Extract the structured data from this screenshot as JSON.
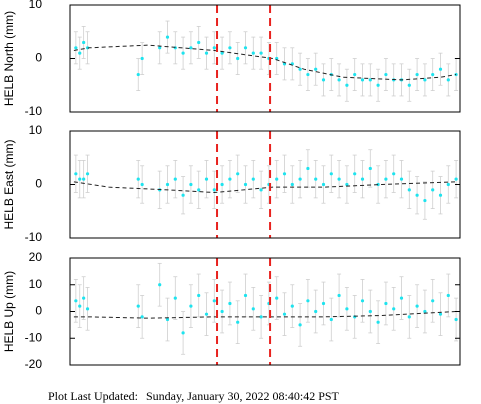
{
  "chart_data": [
    {
      "type": "scatter",
      "ylabel": "HELB North (mm)",
      "ylim": [
        -10,
        10
      ],
      "yticks": [
        -10,
        0,
        10
      ],
      "xlim": [
        0,
        100
      ],
      "vlines": [
        37.7,
        51.3
      ],
      "vline_color": "#e8221e",
      "color": "#1ee3ee",
      "error_color": "#cfcfcf",
      "x": [
        1.5,
        2.5,
        3.5,
        4.5,
        17.5,
        18.5,
        23,
        25,
        27,
        29,
        31,
        33,
        35,
        37,
        39,
        41,
        43,
        45,
        47,
        49,
        51,
        53,
        55,
        57,
        59,
        61,
        63,
        65,
        67,
        69,
        71,
        73,
        75,
        77,
        79,
        81,
        83,
        85,
        87,
        89,
        91,
        93,
        95,
        97,
        99
      ],
      "values": [
        2,
        1,
        3,
        2,
        -3,
        0,
        2,
        4,
        2,
        1,
        2,
        3,
        1,
        2,
        1,
        2,
        0,
        2,
        1,
        1,
        0,
        0,
        -1,
        -1,
        -2,
        -3,
        -2,
        -4,
        -3,
        -4,
        -5,
        -3,
        -4,
        -4,
        -5,
        -3,
        -4,
        -4,
        -5,
        -3,
        -4,
        -3,
        -2,
        -4,
        -3
      ],
      "error": 3,
      "model": {
        "x": [
          1,
          5,
          20,
          37,
          52,
          60,
          70,
          85,
          95,
          99
        ],
        "values": [
          1.5,
          2,
          2.5,
          1.5,
          0,
          -2,
          -3.5,
          -4,
          -3.5,
          -3
        ],
        "color": "#222222"
      }
    },
    {
      "type": "scatter",
      "ylabel": "HELB East (mm)",
      "ylim": [
        -10,
        10
      ],
      "yticks": [
        -10,
        0,
        10
      ],
      "xlim": [
        0,
        100
      ],
      "vlines": [
        37.7,
        51.3
      ],
      "vline_color": "#e8221e",
      "color": "#1ee3ee",
      "error_color": "#cfcfcf",
      "x": [
        1.5,
        2.5,
        3.5,
        4.5,
        17.5,
        18.5,
        23,
        25,
        27,
        29,
        31,
        33,
        35,
        37,
        39,
        41,
        43,
        45,
        47,
        49,
        51,
        53,
        55,
        57,
        59,
        61,
        63,
        65,
        67,
        69,
        71,
        73,
        75,
        77,
        79,
        81,
        83,
        85,
        87,
        89,
        91,
        93,
        95,
        97,
        99
      ],
      "values": [
        2,
        1,
        1,
        2,
        1,
        0,
        -1,
        0,
        1,
        -2,
        0,
        -1,
        1,
        -1,
        0,
        1,
        2,
        0,
        1,
        -1,
        0,
        1,
        2,
        0,
        1,
        3,
        1,
        0,
        2,
        1,
        0,
        2,
        1,
        3,
        0,
        1,
        2,
        1,
        -1,
        -2,
        -3,
        -1,
        -2,
        0,
        1
      ],
      "error": 3.5,
      "model": {
        "x": [
          1,
          10,
          25,
          37,
          52,
          65,
          80,
          99
        ],
        "values": [
          0.5,
          -0.5,
          -1,
          -1.5,
          -0.5,
          -0.5,
          0,
          0.5
        ],
        "color": "#222222"
      }
    },
    {
      "type": "scatter",
      "ylabel": "HELB Up (mm)",
      "ylim": [
        -20,
        20
      ],
      "yticks": [
        -20,
        -10,
        0,
        10,
        20
      ],
      "xlim": [
        0,
        100
      ],
      "vlines": [
        37.7,
        51.3
      ],
      "vline_color": "#e8221e",
      "color": "#1ee3ee",
      "error_color": "#cfcfcf",
      "x": [
        1.5,
        2.5,
        3.5,
        4.5,
        17.5,
        18.5,
        23,
        25,
        27,
        29,
        31,
        33,
        35,
        37,
        39,
        41,
        43,
        45,
        47,
        49,
        51,
        53,
        55,
        57,
        59,
        61,
        63,
        65,
        67,
        69,
        71,
        73,
        75,
        77,
        79,
        81,
        83,
        85,
        87,
        89,
        91,
        93,
        95,
        97,
        99
      ],
      "values": [
        4,
        2,
        5,
        1,
        2,
        -2,
        10,
        -3,
        5,
        -8,
        2,
        6,
        -1,
        4,
        0,
        3,
        -4,
        6,
        1,
        -2,
        3,
        5,
        -1,
        2,
        -5,
        4,
        0,
        3,
        -3,
        6,
        1,
        -2,
        4,
        0,
        -4,
        3,
        1,
        5,
        -2,
        2,
        0,
        4,
        -1,
        6,
        -3
      ],
      "error": 8,
      "model": {
        "x": [
          1,
          5,
          20,
          37,
          52,
          65,
          80,
          99
        ],
        "values": [
          -2,
          -2,
          -2.5,
          -2,
          -2,
          -2,
          -1.5,
          0
        ],
        "color": "#222222"
      }
    }
  ],
  "footer": {
    "label": "Plot Last Updated:",
    "timestamp": "Sunday, January 30, 2022 08:40:42 PST"
  }
}
